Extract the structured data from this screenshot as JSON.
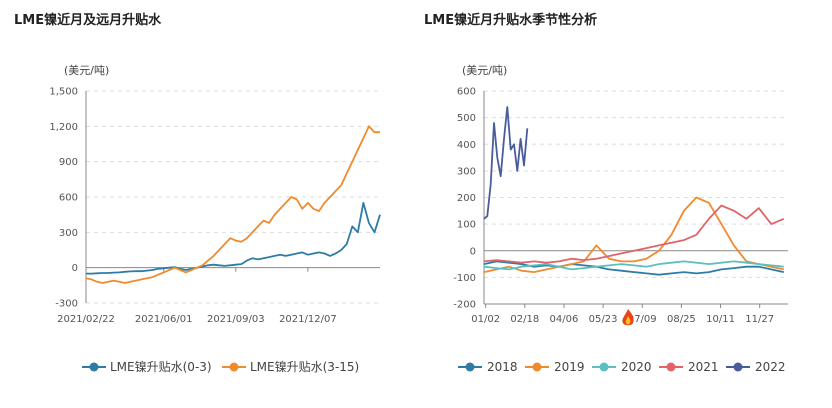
{
  "chart_data": [
    {
      "type": "line",
      "title": "LME镍近月及远月升贴水",
      "unit": "(美元/吨)",
      "ylim": [
        -300,
        1500
      ],
      "yticks": [
        "1,500",
        "1,200",
        "900",
        "600",
        "300",
        "0",
        "-300"
      ],
      "ytick_values": [
        1500,
        1200,
        900,
        600,
        300,
        0,
        -300
      ],
      "x_tick_labels": [
        "2021/02/22",
        "2021/06/01",
        "2021/09/03",
        "2021/12/07"
      ],
      "x_tick_positions": [
        0,
        14,
        27,
        40
      ],
      "x_count": 54,
      "series": [
        {
          "name": "LME镍升贴水(0-3)",
          "color": "#2e7ca6",
          "values": [
            -50,
            -50,
            -48,
            -45,
            -45,
            -42,
            -40,
            -35,
            -32,
            -30,
            -30,
            -25,
            -20,
            -10,
            -5,
            0,
            5,
            -10,
            -20,
            -10,
            0,
            10,
            20,
            25,
            20,
            15,
            20,
            25,
            30,
            60,
            80,
            70,
            80,
            90,
            100,
            110,
            100,
            110,
            120,
            130,
            110,
            120,
            130,
            120,
            100,
            120,
            150,
            200,
            350,
            300,
            550,
            380,
            300,
            450
          ]
        },
        {
          "name": "LME镍升贴水(3-15)",
          "color": "#f18a2c",
          "values": [
            -90,
            -100,
            -120,
            -130,
            -120,
            -110,
            -120,
            -130,
            -120,
            -110,
            -100,
            -90,
            -80,
            -60,
            -40,
            -20,
            0,
            -20,
            -40,
            -20,
            0,
            20,
            60,
            100,
            150,
            200,
            250,
            230,
            220,
            250,
            300,
            350,
            400,
            380,
            450,
            500,
            550,
            600,
            580,
            500,
            550,
            500,
            480,
            550,
            600,
            650,
            700,
            800,
            900,
            1000,
            1100,
            1200,
            1150,
            1150
          ]
        }
      ]
    },
    {
      "type": "line",
      "title": "LME镍近月升贴水季节性分析",
      "unit": "(美元/吨)",
      "ylim": [
        -200,
        600
      ],
      "yticks": [
        "600",
        "500",
        "400",
        "300",
        "200",
        "100",
        "0",
        "-100",
        "-200"
      ],
      "ytick_values": [
        600,
        500,
        400,
        300,
        200,
        100,
        0,
        -100,
        -200
      ],
      "x_tick_labels": [
        "01/02",
        "02/18",
        "04/06",
        "05/23",
        "07/09",
        "08/25",
        "10/11",
        "11/27"
      ],
      "x_tick_positions": [
        2,
        49,
        96,
        143,
        190,
        237,
        284,
        331
      ],
      "x_range": [
        0,
        365
      ],
      "series": [
        {
          "name": "2018",
          "color": "#2e7ca6",
          "x": [
            0,
            15,
            30,
            45,
            60,
            75,
            90,
            105,
            120,
            135,
            150,
            165,
            180,
            195,
            210,
            225,
            240,
            255,
            270,
            285,
            300,
            315,
            330,
            345,
            360
          ],
          "values": [
            -50,
            -40,
            -45,
            -50,
            -60,
            -55,
            -60,
            -50,
            -55,
            -60,
            -70,
            -75,
            -80,
            -85,
            -90,
            -85,
            -80,
            -85,
            -80,
            -70,
            -65,
            -60,
            -60,
            -70,
            -80
          ]
        },
        {
          "name": "2019",
          "color": "#f18a2c",
          "x": [
            0,
            15,
            30,
            45,
            60,
            75,
            90,
            105,
            120,
            135,
            150,
            165,
            180,
            195,
            210,
            225,
            240,
            255,
            270,
            285,
            300,
            315,
            330,
            345,
            360
          ],
          "values": [
            -80,
            -70,
            -60,
            -75,
            -80,
            -70,
            -60,
            -50,
            -40,
            20,
            -30,
            -40,
            -40,
            -30,
            0,
            60,
            150,
            200,
            180,
            100,
            20,
            -40,
            -50,
            -60,
            -70
          ]
        },
        {
          "name": "2020",
          "color": "#5ebfc0",
          "x": [
            0,
            15,
            30,
            45,
            60,
            75,
            90,
            105,
            120,
            135,
            150,
            165,
            180,
            195,
            210,
            225,
            240,
            255,
            270,
            285,
            300,
            315,
            330,
            345,
            360
          ],
          "values": [
            -60,
            -65,
            -70,
            -60,
            -55,
            -50,
            -60,
            -70,
            -65,
            -60,
            -55,
            -50,
            -55,
            -60,
            -50,
            -45,
            -40,
            -45,
            -50,
            -45,
            -40,
            -45,
            -50,
            -55,
            -60
          ]
        },
        {
          "name": "2021",
          "color": "#e06469",
          "x": [
            0,
            15,
            30,
            45,
            60,
            75,
            90,
            105,
            120,
            135,
            150,
            165,
            180,
            195,
            210,
            225,
            240,
            255,
            270,
            285,
            300,
            315,
            330,
            345,
            360
          ],
          "values": [
            -40,
            -35,
            -40,
            -45,
            -40,
            -45,
            -40,
            -30,
            -35,
            -30,
            -20,
            -10,
            0,
            10,
            20,
            30,
            40,
            60,
            120,
            170,
            150,
            120,
            160,
            100,
            120
          ]
        },
        {
          "name": "2022",
          "color": "#4a5d9b",
          "x": [
            0,
            4,
            8,
            12,
            16,
            20,
            24,
            28,
            32,
            36,
            40,
            44,
            48,
            52
          ],
          "values": [
            120,
            130,
            250,
            480,
            350,
            280,
            420,
            540,
            380,
            400,
            300,
            420,
            320,
            460
          ]
        }
      ]
    }
  ]
}
